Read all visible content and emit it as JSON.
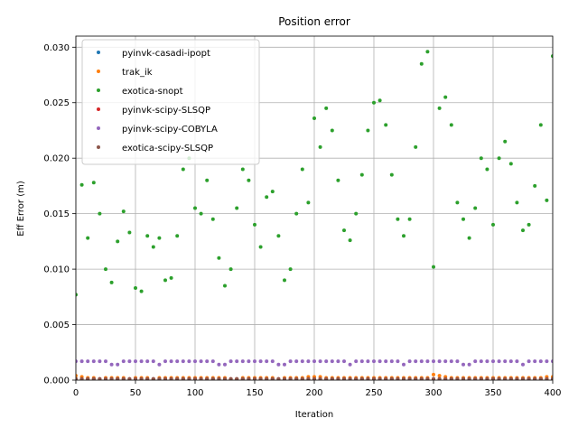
{
  "chart_data": {
    "type": "scatter",
    "title": "Position error",
    "xlabel": "Iteration",
    "ylabel": "Eff Error (m)",
    "x": [
      0,
      5,
      10,
      15,
      20,
      25,
      30,
      35,
      40,
      45,
      50,
      55,
      60,
      65,
      70,
      75,
      80,
      85,
      90,
      95,
      100,
      105,
      110,
      115,
      120,
      125,
      130,
      135,
      140,
      145,
      150,
      155,
      160,
      165,
      170,
      175,
      180,
      185,
      190,
      195,
      200,
      205,
      210,
      215,
      220,
      225,
      230,
      235,
      240,
      245,
      250,
      255,
      260,
      265,
      270,
      275,
      280,
      285,
      290,
      295,
      300,
      305,
      310,
      315,
      320,
      325,
      330,
      335,
      340,
      345,
      350,
      355,
      360,
      365,
      370,
      375,
      380,
      385,
      390,
      395,
      400
    ],
    "xlim": [
      0,
      400
    ],
    "ylim": [
      0,
      0.031
    ],
    "xticks": [
      0,
      50,
      100,
      150,
      200,
      250,
      300,
      350,
      400
    ],
    "yticks": [
      {
        "value": 0,
        "label": "0.000"
      },
      {
        "value": 0.005,
        "label": "0.005"
      },
      {
        "value": 0.01,
        "label": "0.010"
      },
      {
        "value": 0.015,
        "label": "0.015"
      },
      {
        "value": 0.02,
        "label": "0.020"
      },
      {
        "value": 0.025,
        "label": "0.025"
      },
      {
        "value": 0.03,
        "label": "0.030"
      }
    ],
    "grid": true,
    "legend": "upper left",
    "series": [
      {
        "name": "pyinvk-casadi-ipopt",
        "color": "#1f77b4",
        "values": [
          0.0001,
          0.0001,
          0.0001,
          0.0001,
          0.0001,
          0.0001,
          0.0001,
          0.0001,
          0.0001,
          0.0001,
          0.0001,
          0.0001,
          0.0001,
          0.0001,
          0.0001,
          0.0001,
          0.0001,
          0.0001,
          0.0001,
          0.0001,
          0.0001,
          0.0001,
          0.0001,
          0.0001,
          0.0001,
          0.0001,
          0.0001,
          0.0001,
          0.0001,
          0.0001,
          0.0001,
          0.0001,
          0.0001,
          0.0001,
          0.0001,
          0.0001,
          0.0001,
          0.0001,
          0.0001,
          0.0001,
          0.0001,
          0.0001,
          0.0001,
          0.0001,
          0.0001,
          0.0001,
          0.0001,
          0.0001,
          0.0001,
          0.0001,
          0.0001,
          0.0001,
          0.0001,
          0.0001,
          0.0001,
          0.0001,
          0.0001,
          0.0001,
          0.0001,
          0.0001,
          0.0001,
          0.0001,
          0.0001,
          0.0001,
          0.0001,
          0.0001,
          0.0001,
          0.0001,
          0.0001,
          0.0001,
          0.0001,
          0.0001,
          0.0001,
          0.0001,
          0.0001,
          0.0001,
          0.0001,
          0.0001,
          0.0001,
          0.0001,
          0.0001
        ]
      },
      {
        "name": "trak_ik",
        "color": "#ff7f0e",
        "values": [
          0.0004,
          0.0003,
          0.0002,
          0.0002,
          0.0001,
          0.0002,
          0.0002,
          0.0002,
          0.0002,
          0.0001,
          0.0002,
          0.0002,
          0.0002,
          0.0001,
          0.0002,
          0.0002,
          0.0002,
          0.0002,
          0.0002,
          0.0002,
          0.0002,
          0.0002,
          0.0002,
          0.0002,
          0.0002,
          0.0002,
          0.0001,
          0.0001,
          0.0002,
          0.0002,
          0.0002,
          0.0002,
          0.0002,
          0.0002,
          0.0001,
          0.0002,
          0.0002,
          0.0002,
          0.0002,
          0.0003,
          0.0003,
          0.0003,
          0.0002,
          0.0002,
          0.0002,
          0.0002,
          0.0002,
          0.0002,
          0.0002,
          0.0002,
          0.0002,
          0.0002,
          0.0002,
          0.0002,
          0.0002,
          0.0002,
          0.0002,
          0.0002,
          0.0002,
          0.0002,
          0.0005,
          0.0004,
          0.0003,
          0.0002,
          0.0002,
          0.0002,
          0.0002,
          0.0002,
          0.0002,
          0.0002,
          0.0002,
          0.0002,
          0.0002,
          0.0002,
          0.0002,
          0.0002,
          0.0002,
          0.0002,
          0.0002,
          0.0003,
          0.0003
        ]
      },
      {
        "name": "exotica-snopt",
        "color": "#2ca02c",
        "values": [
          0.0077,
          0.0176,
          0.0128,
          0.0178,
          0.015,
          0.01,
          0.0088,
          0.0125,
          0.0152,
          0.0133,
          0.0083,
          0.008,
          0.013,
          0.012,
          0.0128,
          0.009,
          0.0092,
          0.013,
          0.019,
          0.02,
          0.0155,
          0.015,
          0.018,
          0.0145,
          0.011,
          0.0085,
          0.01,
          0.0155,
          0.019,
          0.018,
          0.014,
          0.012,
          0.0165,
          0.017,
          0.013,
          0.009,
          0.01,
          0.015,
          0.019,
          0.016,
          0.0236,
          0.021,
          0.0245,
          0.0225,
          0.018,
          0.0135,
          0.0126,
          0.015,
          0.0185,
          0.0225,
          0.025,
          0.0252,
          0.023,
          0.0185,
          0.0145,
          0.013,
          0.0145,
          0.021,
          0.0285,
          0.0296,
          0.0102,
          0.0245,
          0.0255,
          0.023,
          0.016,
          0.0145,
          0.0128,
          0.0155,
          0.02,
          0.019,
          0.014,
          0.02,
          0.0215,
          0.0195,
          0.016,
          0.0135,
          0.014,
          0.0175,
          0.023,
          0.0162,
          0.0292
        ]
      },
      {
        "name": "pyinvk-scipy-SLSQP",
        "color": "#d62728",
        "values": [
          0.0001,
          0.0001,
          0.0001,
          0.0001,
          0.0001,
          0.0001,
          0.0001,
          0.0001,
          0.0001,
          0.0001,
          0.0001,
          0.0001,
          0.0001,
          0.0001,
          0.0001,
          0.0001,
          0.0001,
          0.0001,
          0.0001,
          0.0001,
          0.0001,
          0.0001,
          0.0001,
          0.0001,
          0.0001,
          0.0001,
          0.0001,
          0.0001,
          0.0001,
          0.0001,
          0.0001,
          0.0001,
          0.0001,
          0.0001,
          0.0001,
          0.0001,
          0.0001,
          0.0001,
          0.0001,
          0.0001,
          0.0001,
          0.0001,
          0.0001,
          0.0001,
          0.0001,
          0.0001,
          0.0001,
          0.0001,
          0.0001,
          0.0001,
          0.0001,
          0.0001,
          0.0001,
          0.0001,
          0.0001,
          0.0001,
          0.0001,
          0.0001,
          0.0001,
          0.0001,
          0.0001,
          0.0001,
          0.0001,
          0.0001,
          0.0001,
          0.0001,
          0.0001,
          0.0001,
          0.0001,
          0.0001,
          0.0001,
          0.0001,
          0.0001,
          0.0001,
          0.0001,
          0.0001,
          0.0001,
          0.0001,
          0.0001,
          0.0001,
          0.0001
        ]
      },
      {
        "name": "pyinvk-scipy-COBYLA",
        "color": "#9467bd",
        "values": [
          0.0017,
          0.0017,
          0.0017,
          0.0017,
          0.0017,
          0.0017,
          0.0014,
          0.0014,
          0.0017,
          0.0017,
          0.0017,
          0.0017,
          0.0017,
          0.0017,
          0.0014,
          0.0017,
          0.0017,
          0.0017,
          0.0017,
          0.0017,
          0.0017,
          0.0017,
          0.0017,
          0.0017,
          0.0014,
          0.0014,
          0.0017,
          0.0017,
          0.0017,
          0.0017,
          0.0017,
          0.0017,
          0.0017,
          0.0017,
          0.0014,
          0.0014,
          0.0017,
          0.0017,
          0.0017,
          0.0017,
          0.0017,
          0.0017,
          0.0017,
          0.0017,
          0.0017,
          0.0017,
          0.0014,
          0.0017,
          0.0017,
          0.0017,
          0.0017,
          0.0017,
          0.0017,
          0.0017,
          0.0017,
          0.0014,
          0.0017,
          0.0017,
          0.0017,
          0.0017,
          0.0017,
          0.0017,
          0.0017,
          0.0017,
          0.0017,
          0.0014,
          0.0014,
          0.0017,
          0.0017,
          0.0017,
          0.0017,
          0.0017,
          0.0017,
          0.0017,
          0.0017,
          0.0014,
          0.0017,
          0.0017,
          0.0017,
          0.0017,
          0.0017
        ]
      },
      {
        "name": "exotica-scipy-SLSQP",
        "color": "#8c564b",
        "values": [
          0.0001,
          0.0001,
          0.0001,
          0.0001,
          0.0001,
          0.0001,
          0.0001,
          0.0001,
          0.0001,
          0.0001,
          0.0001,
          0.0001,
          0.0001,
          0.0001,
          0.0001,
          0.0001,
          0.0001,
          0.0001,
          0.0001,
          0.0001,
          0.0001,
          0.0001,
          0.0001,
          0.0001,
          0.0001,
          0.0001,
          0.0001,
          0.0001,
          0.0001,
          0.0001,
          0.0001,
          0.0001,
          0.0001,
          0.0001,
          0.0001,
          0.0001,
          0.0001,
          0.0001,
          0.0001,
          0.0001,
          0.0001,
          0.0001,
          0.0001,
          0.0001,
          0.0001,
          0.0001,
          0.0001,
          0.0001,
          0.0001,
          0.0001,
          0.0001,
          0.0001,
          0.0001,
          0.0001,
          0.0001,
          0.0001,
          0.0001,
          0.0001,
          0.0001,
          0.0001,
          0.0001,
          0.0001,
          0.0001,
          0.0001,
          0.0001,
          0.0001,
          0.0001,
          0.0001,
          0.0001,
          0.0001,
          0.0001,
          0.0001,
          0.0001,
          0.0001,
          0.0001,
          0.0001,
          0.0001,
          0.0001,
          0.0001,
          0.0001,
          0.0001
        ]
      }
    ]
  }
}
